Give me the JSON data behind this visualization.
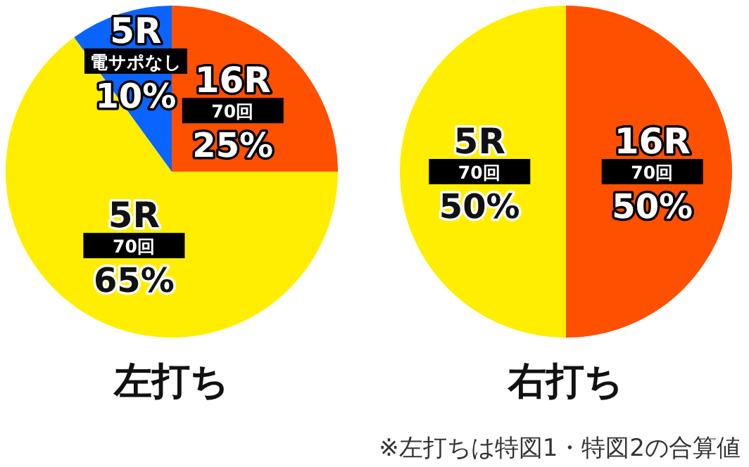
{
  "chart_data": [
    {
      "type": "pie",
      "title": "左打ち",
      "categories": [
        "16R",
        "5R",
        "5R"
      ],
      "values": [
        25,
        65,
        10
      ],
      "colors": [
        "#ff5000",
        "#ffee00",
        "#0a64ff"
      ],
      "value_labels": [
        "25%",
        "65%",
        "10%"
      ],
      "annotations": [
        "70回",
        "70回",
        "電サポなし"
      ]
    },
    {
      "type": "pie",
      "title": "右打ち",
      "categories": [
        "16R",
        "5R"
      ],
      "values": [
        50,
        50
      ],
      "colors": [
        "#ff5000",
        "#ffee00"
      ],
      "value_labels": [
        "50%",
        "50%"
      ],
      "annotations": [
        "70回",
        "70回",
        "※左打ちは特図1・特図2の合算値"
      ]
    }
  ]
}
